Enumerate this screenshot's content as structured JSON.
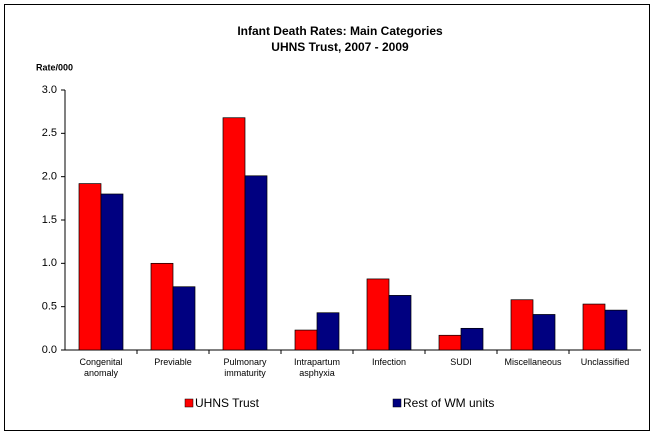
{
  "chart_data": {
    "type": "bar",
    "title": "Infant Death Rates: Main Categories",
    "subtitle": "UHNS Trust, 2007 - 2009",
    "y_label": "Rate/000",
    "categories": [
      "Congenital anomaly",
      "Previable",
      "Pulmonary immaturity",
      "Intrapartum asphyxia",
      "Infection",
      "SUDI",
      "Miscellaneous",
      "Unclassified"
    ],
    "series": [
      {
        "name": "UHNS Trust",
        "color": "#ff0000",
        "values": [
          1.92,
          1.0,
          2.68,
          0.23,
          0.82,
          0.17,
          0.58,
          0.53
        ]
      },
      {
        "name": "Rest of WM units",
        "color": "#000080",
        "values": [
          1.8,
          0.73,
          2.01,
          0.43,
          0.63,
          0.25,
          0.41,
          0.46
        ]
      }
    ],
    "ylim": [
      0,
      3
    ],
    "yticks": [
      {
        "value": 0,
        "label": "0.0"
      },
      0.5,
      {
        "value": 1,
        "label": "1.0"
      },
      1.5,
      {
        "value": 2,
        "label": "2.0"
      },
      2.5,
      {
        "value": 3,
        "label": "3.0"
      }
    ],
    "grid": false,
    "legend": "bottom"
  }
}
